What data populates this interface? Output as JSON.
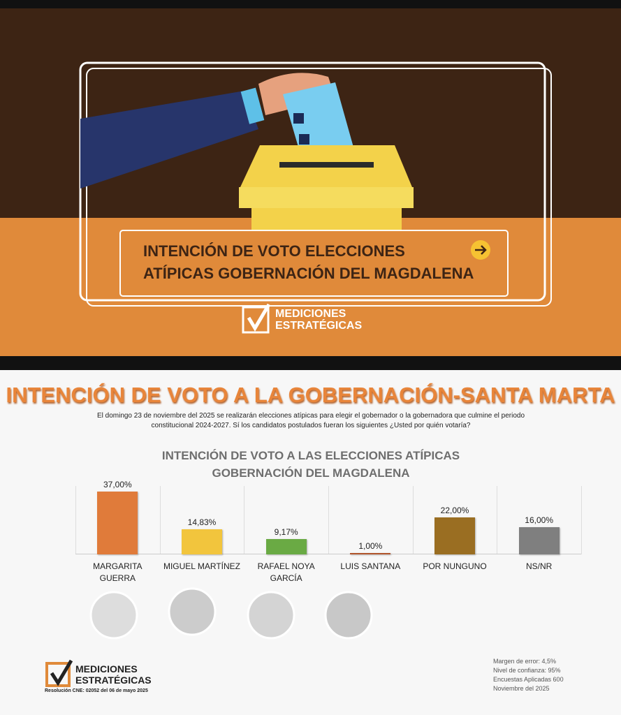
{
  "banner": {
    "title": "INTENCIÓN DE VOTO ELECCIONES ATÍPICAS GOBERNACIÓN DEL MAGDALENA",
    "logo": [
      "MEDICIONES",
      "ESTRATÉGICAS"
    ]
  },
  "chart_data": {
    "type": "bar",
    "title": "INTENCIÓN DE VOTO A LA GOBERNACIÓN-SANTA MARTA",
    "subtitle": "El domingo 23 de noviembre del 2025 se realizarán elecciones atípicas para elegir el gobernador o la gobernadora que culmine el periodo constitucional 2024-2027. Sí los candidatos postulados fueran los siguientes ¿Usted por quién votaría?",
    "chart_title": "INTENCIÓN DE VOTO A LAS ELECCIONES ATÍPICAS GOBERNACIÓN DEL MAGDALENA",
    "categories": [
      "MARGARITA GUERRA",
      "MIGUEL MARTÍNEZ",
      "RAFAEL NOYA GARCÍA",
      "LUIS SANTANA",
      "POR NUNGUNO",
      "NS/NR"
    ],
    "values": [
      37.0,
      14.83,
      9.17,
      1.0,
      22.0,
      16.0
    ],
    "value_labels": [
      "37,00%",
      "14,83%",
      "9,17%",
      "1,00%",
      "22,00%",
      "16,00%"
    ],
    "colors": [
      "#e07b3a",
      "#f2c53d",
      "#6aaa44",
      "#b0542a",
      "#9a6e22",
      "#7f7f7f"
    ]
  },
  "footer": {
    "logo": [
      "MEDICIONES",
      "ESTRATÉGICAS"
    ],
    "resolution": "Resolución CNE: 02052 del 06 de mayo 2025",
    "notes": [
      "Margen de error: 4,5%",
      "Nivel de confianza: 95%",
      "Encuestas Aplicadas 600",
      "Noviembre del 2025"
    ]
  }
}
